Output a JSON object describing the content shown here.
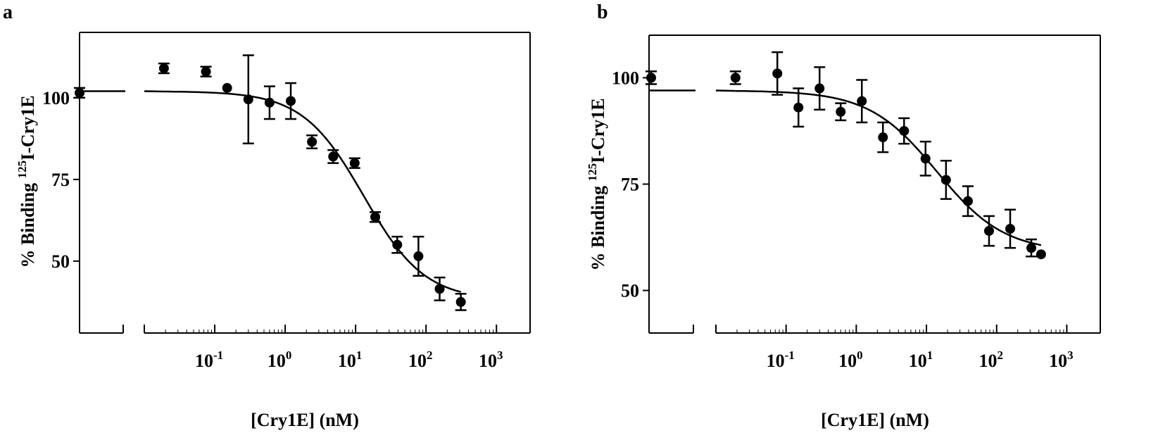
{
  "panel_a_letter": "a",
  "panel_b_letter": "b",
  "chart_data": [
    {
      "type": "scatter",
      "panel": "a",
      "xlabel": "[Cry1E] (nM)",
      "ylabel_prefix": "% Binding ",
      "ylabel_sup": "125",
      "ylabel_suffix": "I-Cry1E",
      "x_scale": "log",
      "y_ticks": [
        "50",
        "75",
        "100"
      ],
      "y_tick_values": [
        50,
        75,
        100
      ],
      "x_tick_exponents": [
        "-1",
        "0",
        "1",
        "2",
        "3"
      ],
      "x_tick_base": "10",
      "xlim": [
        0.01,
        3000
      ],
      "ylim": [
        28,
        120
      ],
      "axis_break": true,
      "control_point": {
        "y": 101.5,
        "err": 1.5
      },
      "fit_plateau": 102,
      "fit_bottom": 38,
      "fit_ec50": 13,
      "fit_hill": 1,
      "points": [
        {
          "x": 0.019,
          "y": 109,
          "err": 1.5
        },
        {
          "x": 0.075,
          "y": 108,
          "err": 1.5
        },
        {
          "x": 0.15,
          "y": 103,
          "err": 0
        },
        {
          "x": 0.3,
          "y": 99.5,
          "err": 13.5
        },
        {
          "x": 0.6,
          "y": 98.5,
          "err": 5
        },
        {
          "x": 1.2,
          "y": 99,
          "err": 5.5
        },
        {
          "x": 2.4,
          "y": 86.5,
          "err": 2
        },
        {
          "x": 4.8,
          "y": 82,
          "err": 2
        },
        {
          "x": 9.7,
          "y": 80,
          "err": 1.5
        },
        {
          "x": 19,
          "y": 63.5,
          "err": 1.5
        },
        {
          "x": 39,
          "y": 55,
          "err": 2.5
        },
        {
          "x": 78,
          "y": 51.5,
          "err": 6
        },
        {
          "x": 156,
          "y": 41.5,
          "err": 3.5
        },
        {
          "x": 312,
          "y": 37.5,
          "err": 2.5
        }
      ]
    },
    {
      "type": "scatter",
      "panel": "b",
      "xlabel": "[Cry1E] (nM)",
      "ylabel_prefix": "% Binding ",
      "ylabel_sup": "125",
      "ylabel_suffix": "I-Cry1E",
      "x_scale": "log",
      "y_ticks": [
        "50",
        "75",
        "100"
      ],
      "y_tick_values": [
        50,
        75,
        100
      ],
      "x_tick_exponents": [
        "-1",
        "0",
        "1",
        "2",
        "3"
      ],
      "x_tick_base": "10",
      "xlim": [
        0.01,
        3000
      ],
      "ylim": [
        40,
        110
      ],
      "axis_break": true,
      "control_point": {
        "y": 100,
        "err": 1.5
      },
      "fit_plateau": 97,
      "fit_bottom": 59,
      "fit_ec50": 14,
      "fit_hill": 0.9,
      "points": [
        {
          "x": 0.019,
          "y": 100,
          "err": 1.5
        },
        {
          "x": 0.075,
          "y": 101,
          "err": 5
        },
        {
          "x": 0.15,
          "y": 93,
          "err": 4.5
        },
        {
          "x": 0.3,
          "y": 97.5,
          "err": 5
        },
        {
          "x": 0.6,
          "y": 92,
          "err": 2
        },
        {
          "x": 1.2,
          "y": 94.5,
          "err": 5
        },
        {
          "x": 2.4,
          "y": 86,
          "err": 3.5
        },
        {
          "x": 4.8,
          "y": 87.5,
          "err": 3
        },
        {
          "x": 9.7,
          "y": 81,
          "err": 4
        },
        {
          "x": 19,
          "y": 76,
          "err": 4.5
        },
        {
          "x": 39,
          "y": 71,
          "err": 3.5
        },
        {
          "x": 78,
          "y": 64,
          "err": 3.5
        },
        {
          "x": 156,
          "y": 64.5,
          "err": 4.5
        },
        {
          "x": 312,
          "y": 60,
          "err": 2
        },
        {
          "x": 430,
          "y": 58.5,
          "err": 0
        }
      ]
    }
  ]
}
